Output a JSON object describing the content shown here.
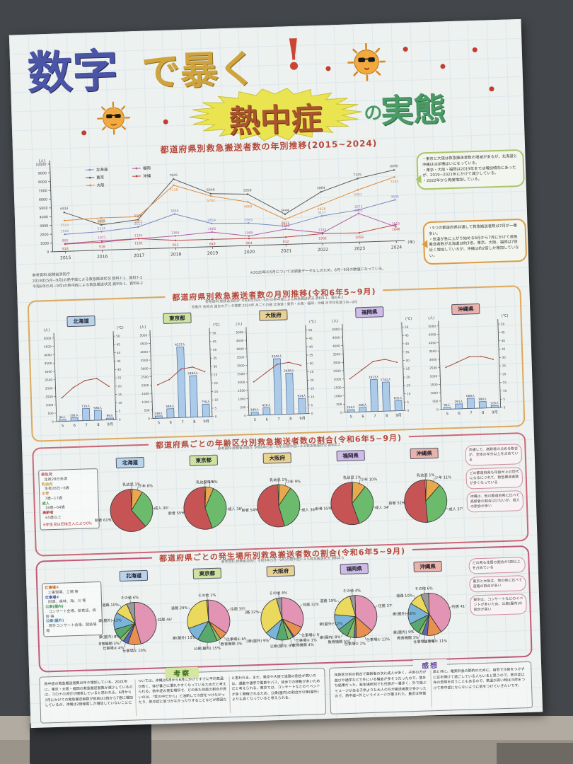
{
  "photo": {
    "wall_color": "#43464a",
    "floor_color": "#b2aba1",
    "poster_bg": "#edf1ef"
  },
  "icons": {
    "sun": "sun-with-sunglasses"
  },
  "poster": {
    "title": {
      "lead_blue": "数字",
      "lead_gold": "で暴く",
      "exclaim": "!",
      "highlight": "熱中症",
      "tail_no": "の",
      "tail": "実態"
    }
  },
  "chart_data": [
    {
      "id": "yearly",
      "type": "line",
      "title": "都道府県別救急搬送者数の年別推移(2015~2024)",
      "x": [
        2015,
        2016,
        2017,
        2018,
        2019,
        2020,
        2021,
        2022,
        2023,
        2024
      ],
      "xlabel": "(年)",
      "ylabel": "(人)",
      "ylim": [
        0,
        10000
      ],
      "ytick": 1000,
      "legend_position": "top-left",
      "series": [
        {
          "name": "北海道",
          "color": "#7b86c2",
          "values": [
            1941,
            2116,
            2513,
            3856,
            2654,
            2563,
            2071,
            3117,
            3671,
            4685
          ]
        },
        {
          "name": "東京",
          "color": "#5a5a5a",
          "values": [
            4434,
            2885,
            3346,
            7845,
            6046,
            5858,
            3444,
            5864,
            7245,
            8090
          ]
        },
        {
          "name": "大阪",
          "color": "#e08a3c",
          "values": [
            3514,
            3680,
            3681,
            7138,
            5782,
            4969,
            2864,
            4428,
            5951,
            7283
          ]
        },
        {
          "name": "福岡",
          "color": "#b05fa8",
          "values": [
            868,
            1071,
            1184,
            1364,
            1665,
            1089,
            1746,
            1182,
            3265,
            1615
          ]
        },
        {
          "name": "沖縄",
          "color": "#c24646",
          "values": [
            818,
            918,
            1181,
            852,
            840,
            804,
            832,
            1082,
            1059,
            1848
          ]
        }
      ]
    },
    {
      "id": "monthly",
      "type": "combo",
      "title": "都道府県別救急搬送者数の月別推移(令和6年5~9月)",
      "notes": [
        "参考資料:総務省消防庁 令和6年(5月~9月)の熱中症による救急搬送状況 資料9-1、資料9-2",
        "気象庁 各地点 過去のデータ検索 2024年 月ごとの値 北海道・東京・大阪・福岡・沖縄 日平均気温 5月~9月"
      ],
      "categories": [
        "5",
        "6",
        "7",
        "8",
        "9月"
      ],
      "left_axis": {
        "label": "(人)",
        "max": 5000,
        "step": 500
      },
      "right_axis": {
        "label": "(℃)",
        "max": 50,
        "step": 5
      },
      "bar_color": "#abcbe9",
      "line_color": "#a34b3b",
      "charts": [
        {
          "name": "北海道",
          "tag_color": "#b9d3ea",
          "bars": [
            94,
            191,
            716,
            586,
            99
          ],
          "temps": [
            14,
            20,
            24,
            25,
            20
          ]
        },
        {
          "name": "東京都",
          "tag_color": "#cfe3a0",
          "bars": [
            138,
            548,
            4227,
            2484,
            756
          ],
          "temps": [
            20,
            23,
            29,
            30,
            27
          ]
        },
        {
          "name": "大阪府",
          "tag_color": "#e7d291",
          "bars": [
            190,
            428,
            3342,
            2456,
            923
          ],
          "temps": [
            20,
            25,
            30,
            31,
            29
          ]
        },
        {
          "name": "福岡県",
          "tag_color": "#cfbce6",
          "bars": [
            154,
            266,
            1913,
            1741,
            605
          ],
          "temps": [
            20,
            25,
            30,
            31,
            29
          ]
        },
        {
          "name": "沖縄県",
          "tag_color": "#eab3aa",
          "bars": [
            98,
            291,
            608,
            390,
            126
          ],
          "temps": [
            25,
            28,
            31,
            31,
            29
          ]
        }
      ]
    },
    {
      "id": "age",
      "type": "pie",
      "title": "都道府県ごとの年齢区分別救急搬送者数の割合(令和6年5~9月)",
      "note": "参考資料:総務省消防庁 令和6年(5月~9月)の熱中症による救急搬送状況 資料4-2",
      "order": [
        "乳幼児",
        "少年",
        "成人",
        "高齢者"
      ],
      "slice_colors": {
        "乳幼児": "#f2e18a",
        "少年": "#e8a84c",
        "成人": "#6cbb6c",
        "高齢者": "#c65454"
      },
      "charts": [
        {
          "name": "北海道",
          "tag_color": "#b9d3ea",
          "values": {
            "乳幼児": 1,
            "少年": 8,
            "成人": 30,
            "高齢者": 61
          }
        },
        {
          "name": "東京都",
          "tag_color": "#cfe3a0",
          "values": {
            "乳幼児": 1,
            "少年": 6,
            "成人": 38,
            "高齢者": 55
          }
        },
        {
          "name": "大阪府",
          "tag_color": "#e7d291",
          "values": {
            "乳幼児": 1,
            "少年": 9,
            "成人": 36,
            "高齢者": 54
          }
        },
        {
          "name": "福岡県",
          "tag_color": "#cfbce6",
          "values": {
            "乳幼児": 1,
            "少年": 10,
            "成人": 34,
            "高齢者": 55
          }
        },
        {
          "name": "沖縄県",
          "tag_color": "#eab3aa",
          "values": {
            "乳幼児": 1,
            "少年": 11,
            "成人": 37,
            "高齢者": 51
          }
        }
      ]
    },
    {
      "id": "place",
      "type": "pie",
      "title": "都道府県ごとの発生場所別救急搬送者数の割合(令和6年5~9月)",
      "note": "参考資料:総務省消防庁 令和6年(5月~9月)の熱中症による救急搬送状況 資料4-3",
      "order": [
        "住居",
        "仕事場①",
        "仕事場②",
        "教育機関",
        "公衆(屋内)",
        "公衆(屋外)",
        "道路",
        "その他"
      ],
      "slice_colors": {
        "住居": "#e393b4",
        "仕事場①": "#e89050",
        "仕事場②": "#5568b8",
        "教育機関": "#8fc268",
        "公衆(屋内)": "#59a86e",
        "公衆(屋外)": "#7ab4d8",
        "道路": "#ead95c",
        "その他": "#9a9a9a"
      },
      "charts": [
        {
          "name": "北海道",
          "tag_color": "#b9d3ea",
          "values": {
            "住居": 46,
            "仕事場①": 10,
            "仕事場②": 4,
            "教育機関": 3,
            "公衆(屋内)": 8,
            "公衆(屋外)": 13,
            "道路": 10,
            "その他": 6
          }
        },
        {
          "name": "東京都",
          "tag_color": "#cfe3a0",
          "values": {
            "住居": 35,
            "仕事場①": 6,
            "仕事場②": 0,
            "教育機関": 3,
            "公衆(屋内)": 15,
            "公衆(屋外)": 11,
            "道路": 29,
            "その他": 1
          }
        },
        {
          "name": "大阪府",
          "tag_color": "#e7d291",
          "values": {
            "住居": 32,
            "仕事場①": 9,
            "仕事場②": 1,
            "教育機関": 4,
            "公衆(屋内)": 9,
            "公衆(屋外)": 9,
            "道路": 32,
            "その他": 4
          }
        },
        {
          "name": "福岡県",
          "tag_color": "#cfbce6",
          "values": {
            "住居": 37,
            "仕事場①": 13,
            "仕事場②": 2,
            "教育機関": 5,
            "公衆(屋内)": 8,
            "公衆(屋外)": 12,
            "道路": 19,
            "その他": 4
          }
        },
        {
          "name": "沖縄県",
          "tag_color": "#eab3aa",
          "values": {
            "住居": 41,
            "仕事場①": 11,
            "仕事場②": 4,
            "教育機関": 3,
            "公衆(屋内)": 9,
            "公衆(屋外)": 16,
            "道路": 10,
            "その他": 6
          }
        }
      ]
    }
  ],
  "sections": {
    "yearly": {
      "source_lines": [
        "参考資料:総務省消防庁",
        "2019年(5月~9月)の熱中症による救急搬送状況 資料7-1、資料7-2",
        "令和6年(5月~9月)の熱中症による救急搬送状況 資料9-1、資料9-2"
      ],
      "data_note": "※2020年の5月については調査データなしのため、6月~9月の数値になっている。",
      "bubble_green": [
        "・東京と大阪は救急搬送者数の増減があるが、北海道と沖縄はほぼ横ばいになっている。",
        "・東京・大阪・福岡は2019年までは増加傾向にあったが、2019~2021年にかけて減少している。",
        "・2022年から再度増加している。"
      ],
      "bubble_orange": [
        "・5つの都道府県共通して救急搬送者数は7月が一番多い。",
        "・気温が急に上がり始める6月から7月にかけて救急搬送者数が北海道は約3倍、東京、大阪、福岡は7倍近く増加しているが、沖縄は約2倍しか増加していない。"
      ]
    },
    "age": {
      "legend": [
        {
          "term": "新生児",
          "def": "生後28日未満",
          "color": "#b05050"
        },
        {
          "term": "乳幼児",
          "def": "生後28日~6歳",
          "color": "#c59a2f"
        },
        {
          "term": "少年",
          "def": "7歳~17歳",
          "color": "#c77f2a"
        },
        {
          "term": "成人",
          "def": "18歳~64歳",
          "color": "#3f8f3f"
        },
        {
          "term": "高齢者",
          "def": "65歳以上",
          "color": "#b04545"
        }
      ],
      "legend_note": "※新生児は四捨五入により0%",
      "bubbles": [
        "共通して、高齢者の占める割合が、全体の半分以上を占めている",
        "どの都道府県も年齢が上の世代になるにつれて、救急搬送者数が多くなっている",
        "沖縄は、他の都道府県に比べて高齢者の割合は少ないが、成人の割合が多い"
      ]
    },
    "place": {
      "legend": [
        {
          "term": "仕事場①",
          "def": "工事現場、工場 等",
          "color": "#c26a1f"
        },
        {
          "term": "仕事場②",
          "def": "田畑、森林、海、川 等",
          "color": "#44549c"
        },
        {
          "term": "公衆(屋内)",
          "def": "コンサート会場、飲食店、病院 等",
          "color": "#3f8f55"
        },
        {
          "term": "公衆(屋外)",
          "def": "野外コンサート会場、競技場 等",
          "color": "#3f7fae"
        }
      ],
      "bubbles": [
        "どの県も住居の割合が3割以上を占めている",
        "東京と大阪は、他の県に比べて道路の割合が多い",
        "東京は、コンサートなどのイベントが多いため、公衆(屋内)の割合が高い"
      ]
    },
    "kousatsu": {
      "title": "考察",
      "text": "熱中症の救急搬送者数は年々増加している。2021年に、東京・大阪・福岡の救急搬送者数が減少しているのは、コロナの流行が関係していると思われる。6月から7月にかけての救急搬送者数が他県は3倍から7倍に増加しているが、沖縄は2倍程度しか増加していないことについては、沖縄は5月から6月にかけてすでに平均気温が高く、体が暑さに慣れやすくなっているためだと考えられる。熱中症の発生場所で、どの県も住居の割合が高いのは、「家の中だから」と油断して冷房をつけなかったり、熱中症に気づかなかったりすることなどが原因だと思われる。また、東京や大阪で道路の割合が高いのは、通勤や通学で電車やバス、徒歩での移動が多いためだと考えられる。東京では、コンサートなどのイベントが多く開催されるため、公衆(屋内)の割合が公衆(屋外)よりも高くなっていると考えられる。"
    },
    "kansou": {
      "title": "感想",
      "text": "年齢区分別の割合で高齢者の次に成人が多く、子供の方が遊びや通学などで外にいる機会が多そうだったので、意外な結果だった。発生場所別でも住居が一番多く、外で遊ぶイメージがある子供よりも大人の方が搬送者数が多かったので、熱中症=外というイメージが覆された。最近は物価高と共に、電気料金の節約のために、自宅で冷房をつけずに窓を開けて過ごしている人もいると思うので、熱中症は命の危険を伴うこともあるので、気温が高い時は冷房をつけて熱中症にならないように気をつけていきたいです。"
    }
  }
}
